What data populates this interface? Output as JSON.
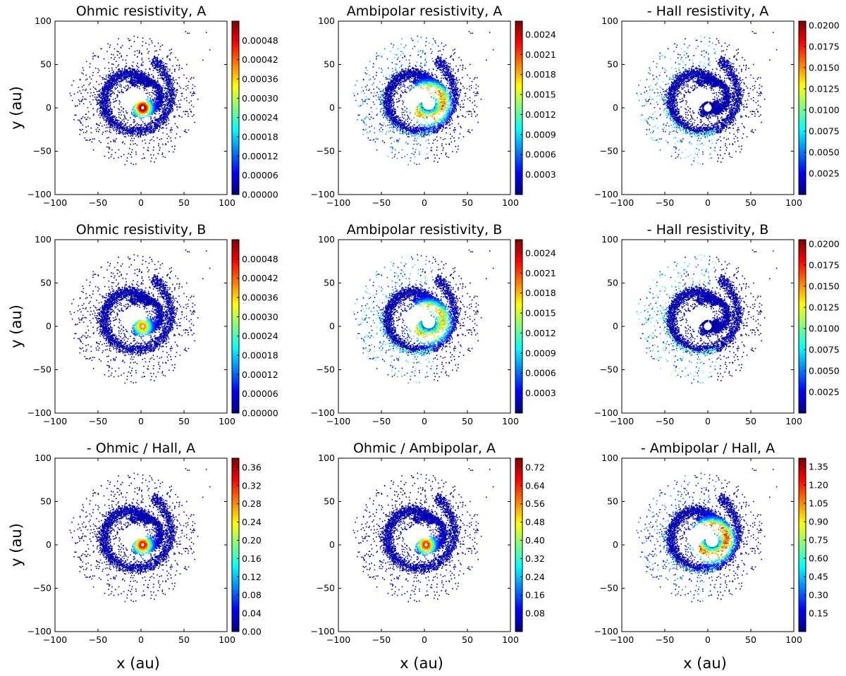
{
  "figure": {
    "xlabel": "x (au)",
    "ylabel": "y (au)"
  },
  "colormap": [
    "#00007f",
    "#0000ff",
    "#007fff",
    "#00ffff",
    "#7fff7f",
    "#ffff00",
    "#ff7f00",
    "#ff0000",
    "#7f0000"
  ],
  "chart_data": [
    {
      "type": "scatter",
      "title": "Ohmic resistivity, A",
      "xlim": [
        -100,
        100
      ],
      "ylim": [
        -100,
        100
      ],
      "xticks": [
        "−100",
        "−50",
        "0",
        "50",
        "100"
      ],
      "yticks": [
        "−100",
        "−50",
        "0",
        "50",
        "100"
      ],
      "colorbar_range": [
        0,
        0.00054
      ],
      "colorbar_ticks": [
        0.0,
        6e-05,
        0.00012,
        0.00018,
        0.00024,
        0.0003,
        0.00036,
        0.00042,
        0.00048
      ],
      "colorbar_labels": [
        "0.00000",
        "0.00006",
        "0.00012",
        "0.00018",
        "0.00024",
        "0.00030",
        "0.00036",
        "0.00042",
        "0.00048"
      ],
      "hotspot": {
        "center": [
          2,
          0
        ],
        "peak": 1.0,
        "ring": 0.0,
        "outer": 0.0
      }
    },
    {
      "type": "scatter",
      "title": "Ambipolar resistivity, A",
      "xlim": [
        -100,
        100
      ],
      "ylim": [
        -100,
        100
      ],
      "xticks": [
        "−100",
        "−50",
        "0",
        "50",
        "100"
      ],
      "yticks": [
        "−100",
        "−50",
        "0",
        "50",
        "100"
      ],
      "colorbar_range": [
        0,
        0.0026
      ],
      "colorbar_ticks": [
        0.0003,
        0.0006,
        0.0009,
        0.0012,
        0.0015,
        0.0018,
        0.0021,
        0.0024
      ],
      "colorbar_labels": [
        "0.0003",
        "0.0006",
        "0.0009",
        "0.0012",
        "0.0015",
        "0.0018",
        "0.0021",
        "0.0024"
      ],
      "hotspot": {
        "center": [
          5,
          5
        ],
        "peak": 0.0,
        "ring": 0.85,
        "outer": 0.35
      }
    },
    {
      "type": "scatter",
      "title": "- Hall resistivity, A",
      "xlim": [
        -100,
        100
      ],
      "ylim": [
        -100,
        100
      ],
      "xticks": [
        "−100",
        "−50",
        "0",
        "50",
        "100"
      ],
      "yticks": [
        "−100",
        "−50",
        "0",
        "50",
        "100"
      ],
      "colorbar_range": [
        0,
        0.0205
      ],
      "colorbar_ticks": [
        0.0025,
        0.005,
        0.0075,
        0.01,
        0.0125,
        0.015,
        0.0175,
        0.02
      ],
      "colorbar_labels": [
        "0.0025",
        "0.0050",
        "0.0075",
        "0.0100",
        "0.0125",
        "0.0150",
        "0.0175",
        "0.0200"
      ],
      "hotspot": {
        "center": [
          0,
          0
        ],
        "peak": 0.0,
        "ring": 0.0,
        "outer": 0.5
      }
    },
    {
      "type": "scatter",
      "title": "Ohmic resistivity, B",
      "xlim": [
        -100,
        100
      ],
      "ylim": [
        -100,
        100
      ],
      "xticks": [
        "−100",
        "−50",
        "0",
        "50",
        "100"
      ],
      "yticks": [
        "−100",
        "−50",
        "0",
        "50",
        "100"
      ],
      "colorbar_range": [
        0,
        0.00054
      ],
      "colorbar_ticks": [
        0.0,
        6e-05,
        0.00012,
        0.00018,
        0.00024,
        0.0003,
        0.00036,
        0.00042,
        0.00048
      ],
      "colorbar_labels": [
        "0.00000",
        "0.00006",
        "0.00012",
        "0.00018",
        "0.00024",
        "0.00030",
        "0.00036",
        "0.00042",
        "0.00048"
      ],
      "hotspot": {
        "center": [
          2,
          0
        ],
        "peak": 0.75,
        "ring": 0.0,
        "outer": 0.0
      }
    },
    {
      "type": "scatter",
      "title": "Ambipolar resistivity, B",
      "xlim": [
        -100,
        100
      ],
      "ylim": [
        -100,
        100
      ],
      "xticks": [
        "−100",
        "−50",
        "0",
        "50",
        "100"
      ],
      "yticks": [
        "−100",
        "−50",
        "0",
        "50",
        "100"
      ],
      "colorbar_range": [
        0,
        0.0026
      ],
      "colorbar_ticks": [
        0.0003,
        0.0006,
        0.0009,
        0.0012,
        0.0015,
        0.0018,
        0.0021,
        0.0024
      ],
      "colorbar_labels": [
        "0.0003",
        "0.0006",
        "0.0009",
        "0.0012",
        "0.0015",
        "0.0018",
        "0.0021",
        "0.0024"
      ],
      "hotspot": {
        "center": [
          5,
          5
        ],
        "peak": 0.0,
        "ring": 0.75,
        "outer": 0.45
      }
    },
    {
      "type": "scatter",
      "title": "- Hall resistivity, B",
      "xlim": [
        -100,
        100
      ],
      "ylim": [
        -100,
        100
      ],
      "xticks": [
        "−100",
        "−50",
        "0",
        "50",
        "100"
      ],
      "yticks": [
        "−100",
        "−50",
        "0",
        "50",
        "100"
      ],
      "colorbar_range": [
        0,
        0.0205
      ],
      "colorbar_ticks": [
        0.0025,
        0.005,
        0.0075,
        0.01,
        0.0125,
        0.015,
        0.0175,
        0.02
      ],
      "colorbar_labels": [
        "0.0025",
        "0.0050",
        "0.0075",
        "0.0100",
        "0.0125",
        "0.0150",
        "0.0175",
        "0.0200"
      ],
      "hotspot": {
        "center": [
          0,
          0
        ],
        "peak": 0.0,
        "ring": 0.0,
        "outer": 0.55
      }
    },
    {
      "type": "scatter",
      "title": "- Ohmic / Hall, A",
      "xlim": [
        -100,
        100
      ],
      "ylim": [
        -100,
        100
      ],
      "xticks": [
        "−100",
        "−50",
        "0",
        "50",
        "100"
      ],
      "yticks": [
        "−100",
        "−50",
        "0",
        "50",
        "100"
      ],
      "colorbar_range": [
        0,
        0.38
      ],
      "colorbar_ticks": [
        0.0,
        0.04,
        0.08,
        0.12,
        0.16,
        0.2,
        0.24,
        0.28,
        0.32,
        0.36
      ],
      "colorbar_labels": [
        "0.00",
        "0.04",
        "0.08",
        "0.12",
        "0.16",
        "0.20",
        "0.24",
        "0.28",
        "0.32",
        "0.36"
      ],
      "hotspot": {
        "center": [
          2,
          0
        ],
        "peak": 0.9,
        "ring": 0.0,
        "outer": 0.0
      }
    },
    {
      "type": "scatter",
      "title": "Ohmic / Ambipolar, A",
      "xlim": [
        -100,
        100
      ],
      "ylim": [
        -100,
        100
      ],
      "xticks": [
        "−100",
        "−50",
        "0",
        "50",
        "100"
      ],
      "yticks": [
        "−100",
        "−50",
        "0",
        "50",
        "100"
      ],
      "colorbar_range": [
        0,
        0.76
      ],
      "colorbar_ticks": [
        0.08,
        0.16,
        0.24,
        0.32,
        0.4,
        0.48,
        0.56,
        0.64,
        0.72
      ],
      "colorbar_labels": [
        "0.08",
        "0.16",
        "0.24",
        "0.32",
        "0.40",
        "0.48",
        "0.56",
        "0.64",
        "0.72"
      ],
      "hotspot": {
        "center": [
          2,
          0
        ],
        "peak": 0.85,
        "ring": 0.0,
        "outer": 0.0
      }
    },
    {
      "type": "scatter",
      "title": "- Ambipolar / Hall, A",
      "xlim": [
        -100,
        100
      ],
      "ylim": [
        -100,
        100
      ],
      "xticks": [
        "−100",
        "−50",
        "0",
        "50",
        "100"
      ],
      "yticks": [
        "−100",
        "−50",
        "0",
        "50",
        "100"
      ],
      "colorbar_range": [
        0,
        1.42
      ],
      "colorbar_ticks": [
        0.15,
        0.3,
        0.45,
        0.6,
        0.75,
        0.9,
        1.05,
        1.2,
        1.35
      ],
      "colorbar_labels": [
        "0.15",
        "0.30",
        "0.45",
        "0.60",
        "0.75",
        "0.90",
        "1.05",
        "1.20",
        "1.35"
      ],
      "hotspot": {
        "center": [
          5,
          5
        ],
        "peak": 0.0,
        "ring": 0.9,
        "outer": 0.3
      }
    }
  ]
}
